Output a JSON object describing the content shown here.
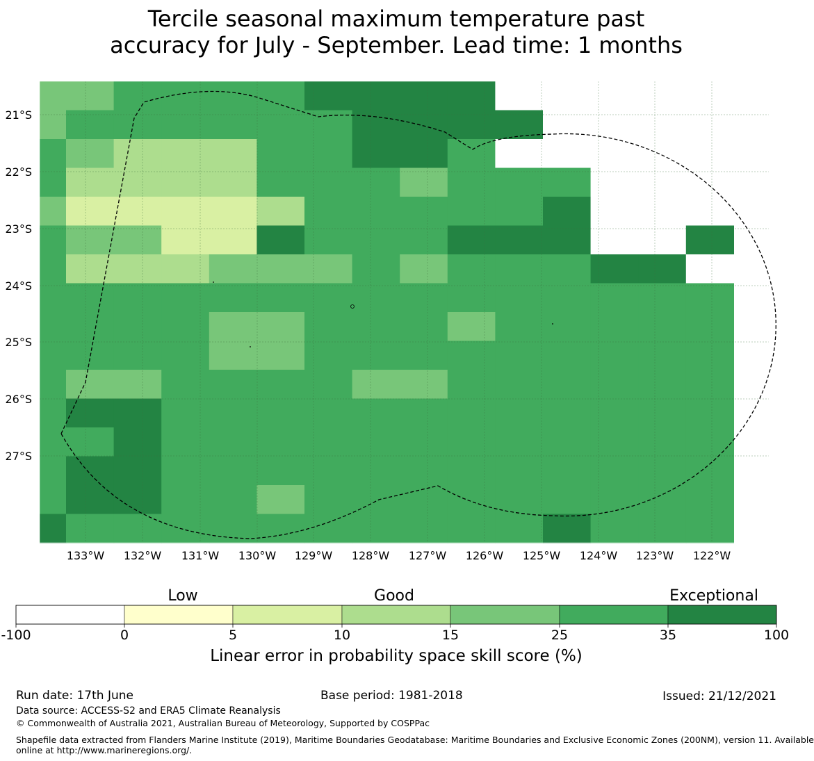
{
  "title": {
    "line1": "Tercile seasonal maximum temperature past",
    "line2": "accuracy for July - September. Lead time: 1 months"
  },
  "map": {
    "latitude_labels": [
      "21°S",
      "22°S",
      "23°S",
      "24°S",
      "25°S",
      "26°S",
      "27°S"
    ],
    "longitude_labels": [
      "133°W",
      "132°W",
      "131°W",
      "130°W",
      "129°W",
      "128°W",
      "127°W",
      "126°W",
      "125°W",
      "124°W",
      "123°W",
      "122°W"
    ],
    "grid_rows": [
      "445555666677777",
      "455555566667777",
      "543335566577777",
      "533335554555777",
      "422223555556777",
      "544226555666776",
      "533344454555667",
      "555555555555555",
      "555544555455555",
      "555544555555555",
      "544555544555555",
      "566555555555555",
      "556555555555555",
      "566555555555555",
      "566554555555555",
      "655555555556555"
    ],
    "boundary_line": "dashed EEZ outline"
  },
  "colorbar": {
    "section_labels": [
      "Low",
      "Good",
      "Exceptional"
    ],
    "ticks": [
      "-100",
      "0",
      "5",
      "10",
      "15",
      "25",
      "35",
      "100"
    ],
    "colors": [
      "#ffffff",
      "#ffffcc",
      "#d9f0a3",
      "#addd8e",
      "#78c679",
      "#41ab5d",
      "#238443"
    ],
    "title": "Linear error in probability space skill score (%)"
  },
  "footer": {
    "run_date": "Run date: 17th June",
    "base_period": "Base period: 1981-2018",
    "issued": "Issued: 21/12/2021",
    "data_source": "Data source: ACCESS-S2 and ERA5 Climate Reanalysis",
    "copyright": "© Commonwealth of Australia 2021, Australian Bureau of Meteorology, Supported by COSPPac",
    "shapefile_line1": "Shapefile data extracted from Flanders Marine Institute (2019), Maritime Boundaries Geodatabase: Maritime Boundaries and Exclusive Economic Zones (200NM), version 11. Available",
    "shapefile_line2": "online at http://www.marineregions.org/."
  }
}
